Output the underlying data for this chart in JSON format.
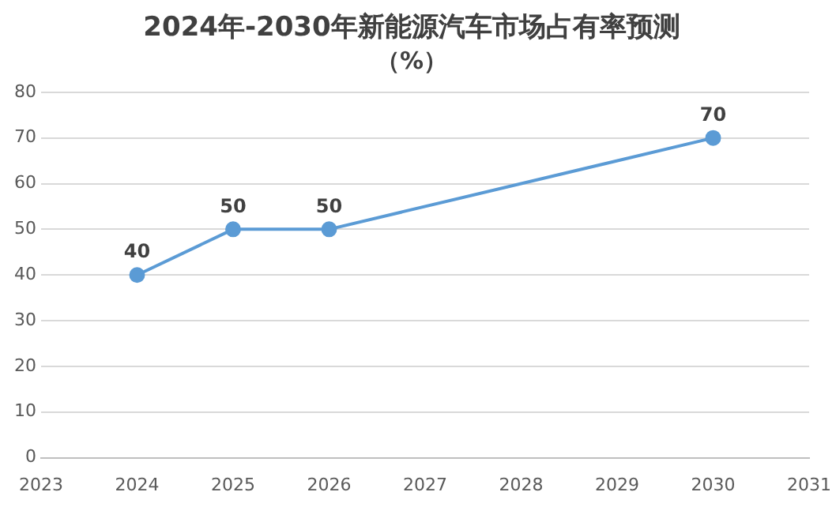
{
  "chart_data": {
    "type": "line",
    "title": "2024年-2030年新能源汽车市场占有率预测",
    "subtitle": "（%）",
    "x": [
      2024,
      2025,
      2026,
      2030
    ],
    "series": [
      {
        "color": "#5b9bd5",
        "values": [
          40,
          50,
          50,
          70
        ]
      }
    ],
    "xlim": [
      2023,
      2031
    ],
    "xticks": [
      2023,
      2024,
      2025,
      2026,
      2027,
      2028,
      2029,
      2030,
      2031
    ],
    "ylim": [
      0,
      80
    ],
    "yticks": [
      0,
      10,
      20,
      30,
      40,
      50,
      60,
      70,
      80
    ],
    "grid": "y",
    "legend": false,
    "marker": "circle",
    "line_style": "solid",
    "data_labels": true
  }
}
